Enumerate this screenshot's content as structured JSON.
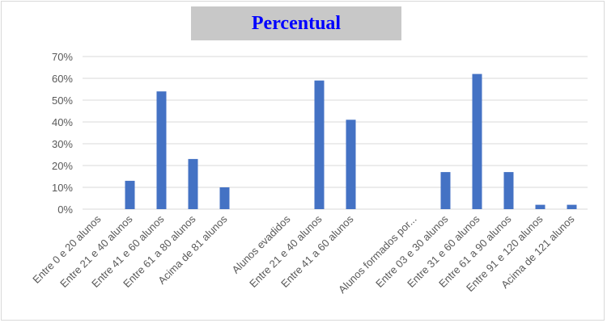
{
  "chart_data": {
    "type": "bar",
    "title": "Percentual",
    "xlabel": "",
    "ylabel": "",
    "ylim": [
      0,
      0.7
    ],
    "y_ticks": [
      "0%",
      "10%",
      "20%",
      "30%",
      "40%",
      "50%",
      "60%",
      "70%"
    ],
    "grid": true,
    "legend": "none",
    "bar_color": "#4472c4",
    "title_color": "#0000ff",
    "title_background": "#c8c8c8",
    "categories": [
      "Entre 0 e 20 alunos",
      "Entre 21 e 40 alunos",
      "Entre 41 e 60 alunos",
      "Entre 61 a 80 alunos",
      "Acima de 81 alunos",
      "",
      "Alunos evadidos",
      "Entre 21 e 40 alunos",
      "Entre 41 a 60 alunos",
      "",
      "Alunos formados por...",
      "Entre 03 e 30 alunos",
      "Entre 31 e 60 alunos",
      "Entre 61 a 90 alunos",
      "Entre 91 e 120 alunos",
      "Acima de 121 alunos"
    ],
    "values": [
      0,
      0.13,
      0.54,
      0.23,
      0.1,
      null,
      null,
      0.59,
      0.41,
      null,
      null,
      0.17,
      0.62,
      0.17,
      0.02,
      0.02
    ]
  }
}
